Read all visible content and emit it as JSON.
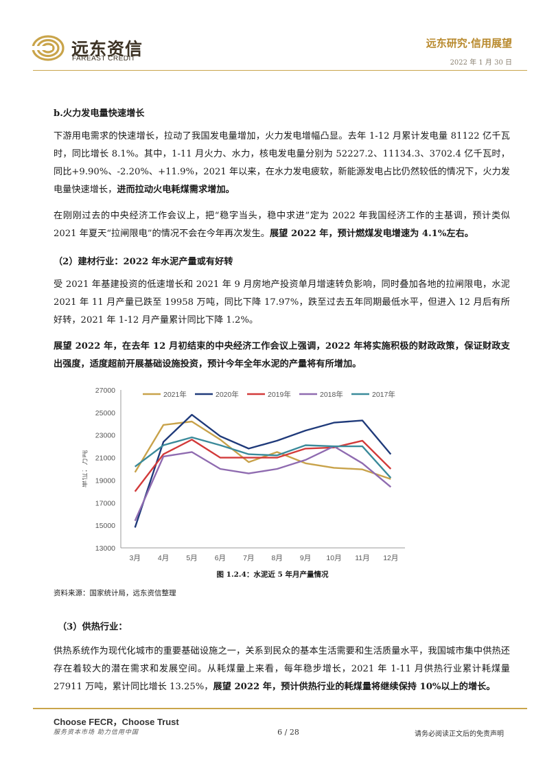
{
  "header": {
    "logo_cn": "远东资信",
    "logo_en": "FAREAST CREDIT",
    "brand": "远东研究·信用展望",
    "date": "2022 年 1 月 30 日"
  },
  "sections": {
    "b_title": "b.火力发电量快速增长",
    "p1_a": "下游用电需求的快速增长，拉动了我国发电量增加，火力发电增幅凸显。去年 1-12 月累计发电量 81122 亿千瓦时，同比增长 8.1%。其中，1-11 月火力、水力，核电发电量分别为 52227.2、11134.3、3702.4 亿千瓦时，同比+9.90%、-2.20%、+11.9%，2021 年以来，在水力发电疲软，新能源发电占比仍然较低的情况下，火力发电量快速增长，",
    "p1_b": "进而拉动火电耗煤需求增加。",
    "p2_a": "在刚刚过去的中央经济工作会议上，把“稳字当头，稳中求进”定为 2022 年我国经济工作的主基调，预计类似 2021 年夏天“拉闸限电”的情况不会在今年再次发生。",
    "p2_b": "展望 2022 年，预计燃煤发电增速为 4.1%左右。",
    "h2": "（2）建材行业：2022 年水泥产量或有好转",
    "p3": "受 2021 年基建投资的低速增长和 2021 年 9 月房地产投资单月增速转负影响，同时叠加各地的拉闸限电，水泥 2021 年 11 月产量已跌至 19958 万吨，同比下降 17.97%，跌至过去五年同期最低水平，但进入 12 月后有所好转，2021 年 1-12 月产量累计同比下降 1.2%。",
    "p4": "展望 2022 年，在去年 12 月初结束的中央经济工作会议上强调，2022 年将实施积极的财政政策，保证财政支出强度，适度超前开展基础设施投资，预计今年全年水泥的产量将有所增加。",
    "caption": "图 1.2.4：水泥近 5 年月产量情况",
    "source": "资料来源：国家统计局，远东资信整理",
    "h3": "（3）供热行业：",
    "p5_a": "供热系统作为现代化城市的重要基础设施之一，关系到民众的基本生活需要和生活质量水平，我国城市集中供热还存在着较大的潜在需求和发展空间。从耗煤量上来看，每年稳步增长，2021 年 1-11 月供热行业累计耗煤量 27911 万吨，累计同比增长 13.25%，",
    "p5_b": "展望 2022 年，预计供热行业的耗煤量将继续保持 10%以上的增长。"
  },
  "footer": {
    "slogan": "Choose FECR，Choose Trust",
    "sub": "服务资本市场  助力信用中国",
    "page": "6 / 28",
    "disclaimer": "请务必阅读正文后的免责声明"
  },
  "colors": {
    "gold": "#b8892c",
    "rule": "#c9a44a"
  },
  "chart_data": {
    "type": "line",
    "categories": [
      "3月",
      "4月",
      "5月",
      "6月",
      "7月",
      "8月",
      "9月",
      "10月",
      "11月",
      "12月"
    ],
    "ylabel": "单位：万吨",
    "ylim": [
      13000,
      27000
    ],
    "yticks": [
      13000,
      15000,
      17000,
      19000,
      21000,
      23000,
      25000,
      27000
    ],
    "legend_position": "top",
    "grid": false,
    "series": [
      {
        "name": "2021年",
        "color": "#c8a24a",
        "values": [
          19700,
          23900,
          24200,
          22600,
          20600,
          21500,
          20500,
          20100,
          19958,
          19100
        ]
      },
      {
        "name": "2020年",
        "color": "#1f3a7a",
        "values": [
          14800,
          22400,
          24800,
          22900,
          21800,
          22500,
          23400,
          24100,
          24300,
          21300
        ]
      },
      {
        "name": "2019年",
        "color": "#d23a3a",
        "values": [
          18000,
          21300,
          22600,
          21000,
          21000,
          21000,
          21800,
          21900,
          22500,
          20000
        ]
      },
      {
        "name": "2018年",
        "color": "#8f6bb0",
        "values": [
          15400,
          21100,
          21500,
          20000,
          19600,
          20000,
          20800,
          22000,
          20500,
          18400
        ]
      },
      {
        "name": "2017年",
        "color": "#3a8a9a",
        "values": [
          20200,
          22100,
          22800,
          22100,
          21300,
          21200,
          22100,
          22000,
          22000,
          19200
        ]
      }
    ]
  }
}
